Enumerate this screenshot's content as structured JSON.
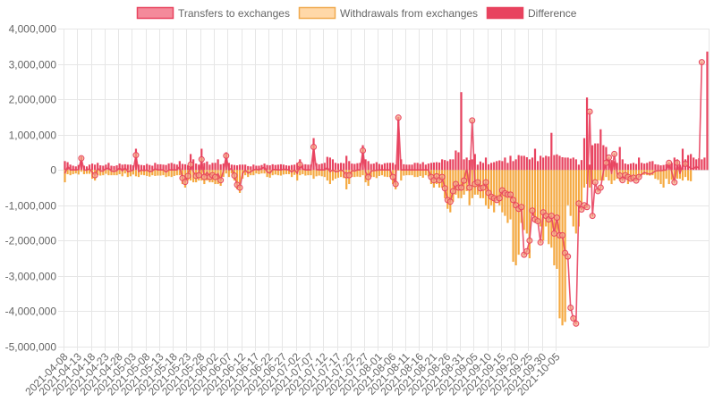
{
  "chart_data": {
    "type": "bar",
    "title": "",
    "xlabel": "",
    "ylabel": "",
    "ylim": [
      -5000000,
      4000000
    ],
    "y_ticks": [
      4000000,
      3000000,
      2000000,
      1000000,
      0,
      -1000000,
      -2000000,
      -3000000,
      -4000000,
      -5000000
    ],
    "y_tick_labels": [
      "4,000,000",
      "3,000,000",
      "2,000,000",
      "1,000,000",
      "0",
      "-1,000,000",
      "-2,000,000",
      "-3,000,000",
      "-4,000,000",
      "-5,000,000"
    ],
    "x_range": [
      "2021-04-08",
      "2021-10-06"
    ],
    "x_tick_labels": [
      "2021-04-08",
      "2021-04-13",
      "2021-04-18",
      "2021-04-23",
      "2021-04-28",
      "2021-05-03",
      "2021-05-08",
      "2021-05-13",
      "2021-05-18",
      "2021-05-23",
      "2021-05-28",
      "2021-06-02",
      "2021-06-07",
      "2021-06-12",
      "2021-06-17",
      "2021-06-22",
      "2021-06-27",
      "2021-07-02",
      "2021-07-07",
      "2021-07-12",
      "2021-07-17",
      "2021-07-22",
      "2021-07-27",
      "2021-08-01",
      "2021-08-06",
      "2021-08-11",
      "2021-08-16",
      "2021-08-21",
      "2021-08-26",
      "2021-08-31",
      "2021-09-05",
      "2021-09-10",
      "2021-09-15",
      "2021-09-20",
      "2021-09-25",
      "2021-09-30",
      "2021-10-05"
    ],
    "grid": true,
    "legend_position": "top",
    "legend": [
      {
        "label": "Transfers to exchanges",
        "fill": "#f48a9a",
        "stroke": "#e8435f"
      },
      {
        "label": "Withdrawals from exchanges",
        "fill": "#ffd8a8",
        "stroke": "#f0a94e"
      },
      {
        "label": "Difference",
        "fill": "#e8435f",
        "stroke": "#e8435f"
      }
    ],
    "colors": {
      "transfers_bar": "#e8435f",
      "withdrawals_bar": "#f5a940",
      "difference_line": "#e8435f",
      "difference_point": "#f4a583",
      "grid": "#e6e6e6",
      "axis_text": "#666666"
    },
    "series": [
      {
        "name": "Transfers to exchanges",
        "role": "bars_positive",
        "values": [
          250000,
          220000,
          150000,
          120000,
          100000,
          140000,
          380000,
          120000,
          100000,
          150000,
          180000,
          150000,
          200000,
          130000,
          120000,
          150000,
          200000,
          120000,
          110000,
          130000,
          180000,
          150000,
          160000,
          150000,
          150000,
          130000,
          600000,
          150000,
          140000,
          130000,
          170000,
          140000,
          120000,
          200000,
          160000,
          160000,
          150000,
          140000,
          180000,
          200000,
          170000,
          150000,
          250000,
          170000,
          160000,
          130000,
          450000,
          300000,
          180000,
          150000,
          600000,
          200000,
          240000,
          150000,
          200000,
          200000,
          300000,
          160000,
          180000,
          500000,
          200000,
          150000,
          140000,
          130000,
          150000,
          150000,
          150000,
          110000,
          100000,
          150000,
          120000,
          120000,
          140000,
          180000,
          140000,
          130000,
          160000,
          140000,
          150000,
          160000,
          150000,
          130000,
          120000,
          140000,
          150000,
          200000,
          300000,
          150000,
          160000,
          150000,
          150000,
          900000,
          190000,
          160000,
          180000,
          200000,
          370000,
          350000,
          300000,
          200000,
          180000,
          200000,
          190000,
          400000,
          250000,
          180000,
          170000,
          190000,
          200000,
          700000,
          300000,
          250000,
          170000,
          180000,
          220000,
          170000,
          150000,
          190000,
          200000,
          200000,
          200000,
          150000,
          1500000,
          300000,
          160000,
          150000,
          150000,
          150000,
          200000,
          200000,
          170000,
          220000,
          150000,
          180000,
          200000,
          210000,
          220000,
          210000,
          300000,
          280000,
          250000,
          300000,
          300000,
          550000,
          500000,
          2200000,
          300000,
          350000,
          280000,
          300000,
          450000,
          150000,
          240000,
          200000,
          350000,
          160000,
          200000,
          220000,
          250000,
          270000,
          250000,
          350000,
          200000,
          400000,
          250000,
          300000,
          420000,
          400000,
          400000,
          360000,
          300000,
          350000,
          600000,
          250000,
          400000,
          350000,
          400000,
          380000,
          1050000,
          420000,
          440000,
          400000,
          360000,
          350000,
          350000,
          320000,
          350000,
          300000,
          150000,
          280000,
          900000,
          2050000,
          150000,
          700000,
          750000,
          750000,
          1150000,
          700000,
          650000,
          300000,
          280000,
          250000,
          200000,
          650000,
          300000,
          180000,
          160000,
          180000,
          200000,
          170000,
          350000,
          200000,
          180000,
          200000,
          240000,
          250000,
          160000,
          150000,
          130000,
          140000,
          160000,
          150000,
          200000,
          350000,
          300000,
          150000,
          600000,
          300000,
          420000,
          450000,
          350000,
          300000,
          330000,
          300000,
          350000,
          3350000
        ]
      },
      {
        "name": "Withdrawals from exchanges",
        "role": "bars_negative",
        "values": [
          -350000,
          -120000,
          -150000,
          -120000,
          -100000,
          -130000,
          -50000,
          -120000,
          -110000,
          -110000,
          -250000,
          -300000,
          -150000,
          -160000,
          -150000,
          -110000,
          -150000,
          -150000,
          -150000,
          -150000,
          -120000,
          -180000,
          -100000,
          -200000,
          -180000,
          -130000,
          -180000,
          -200000,
          -140000,
          -150000,
          -170000,
          -190000,
          -150000,
          -170000,
          -160000,
          -160000,
          -150000,
          -200000,
          -180000,
          -200000,
          -170000,
          -150000,
          -150000,
          -400000,
          -500000,
          -300000,
          -300000,
          -350000,
          -350000,
          -300000,
          -300000,
          -400000,
          -300000,
          -350000,
          -350000,
          -400000,
          -400000,
          -450000,
          -200000,
          -100000,
          -200000,
          -100000,
          -300000,
          -550000,
          -650000,
          -250000,
          -150000,
          -200000,
          -150000,
          -150000,
          -100000,
          -120000,
          -100000,
          -100000,
          -200000,
          -220000,
          -150000,
          -130000,
          -150000,
          -160000,
          -130000,
          -120000,
          -120000,
          -200000,
          -140000,
          -300000,
          -150000,
          -120000,
          -160000,
          -150000,
          -150000,
          -250000,
          -180000,
          -160000,
          -180000,
          -200000,
          -300000,
          -400000,
          -300000,
          -250000,
          -220000,
          -200000,
          -230000,
          -550000,
          -400000,
          -200000,
          -200000,
          -190000,
          -200000,
          -150000,
          -350000,
          -450000,
          -200000,
          -200000,
          -230000,
          -170000,
          -150000,
          -190000,
          -200000,
          -200000,
          -400000,
          -550000,
          -20000,
          -300000,
          -160000,
          -150000,
          -150000,
          -150000,
          -200000,
          -200000,
          -170000,
          -220000,
          -150000,
          -180000,
          -400000,
          -500000,
          -400000,
          -500000,
          -500000,
          -800000,
          -1100000,
          -1200000,
          -900000,
          -700000,
          -800000,
          -800000,
          -700000,
          -600000,
          -1000000,
          -800000,
          -700000,
          -700000,
          -800000,
          -800000,
          -1000000,
          -1100000,
          -1000000,
          -1200000,
          -800000,
          -1000000,
          -1200000,
          -1300000,
          -1500000,
          -1400000,
          -2600000,
          -2700000,
          -2400000,
          -1500000,
          -1700000,
          -1800000,
          -2500000,
          -1300000,
          -1500000,
          -1500000,
          -1600000,
          -2000000,
          -1600000,
          -2100000,
          -2200000,
          -2700000,
          -2800000,
          -4200000,
          -4400000,
          -4300000,
          -1000000,
          -1300000,
          -1600000,
          -1800000,
          -1600000,
          -1000000,
          -500000,
          -400000,
          -500000,
          -400000,
          -300000,
          -300000,
          -300000,
          -300000,
          -200000,
          -300000,
          -400000,
          -300000,
          -250000,
          -300000,
          -250000,
          -250000,
          -400000,
          -300000,
          -280000,
          -250000,
          -200000,
          -150000,
          -140000,
          -150000,
          -160000,
          -150000,
          -250000,
          -280000,
          -400000,
          -500000,
          -250000,
          -400000,
          -280000,
          -280000,
          -250000,
          -250000,
          -300000,
          -200000,
          -300000,
          -320000
        ]
      },
      {
        "name": "Difference",
        "role": "line",
        "values": [
          -100000,
          100000,
          0,
          0,
          0,
          10000,
          330000,
          0,
          -10000,
          40000,
          -70000,
          -150000,
          50000,
          -30000,
          -30000,
          40000,
          50000,
          -30000,
          -40000,
          -20000,
          60000,
          -30000,
          60000,
          -50000,
          -30000,
          0,
          420000,
          -50000,
          0,
          -20000,
          0,
          -50000,
          -30000,
          30000,
          0,
          0,
          0,
          -60000,
          0,
          0,
          0,
          0,
          100000,
          -230000,
          -340000,
          -170000,
          150000,
          -50000,
          -170000,
          -150000,
          300000,
          -200000,
          -60000,
          -200000,
          -150000,
          -200000,
          -100000,
          -290000,
          -20000,
          400000,
          0,
          50000,
          -160000,
          -420000,
          -500000,
          -100000,
          0,
          -90000,
          -50000,
          0,
          20000,
          0,
          40000,
          80000,
          -60000,
          -90000,
          10000,
          10000,
          0,
          0,
          20000,
          10000,
          0,
          -60000,
          10000,
          -100000,
          150000,
          30000,
          0,
          0,
          0,
          650000,
          10000,
          0,
          0,
          0,
          70000,
          -50000,
          0,
          -50000,
          -40000,
          0,
          -40000,
          -150000,
          -150000,
          -20000,
          -30000,
          0,
          0,
          550000,
          -50000,
          -200000,
          -30000,
          -20000,
          -10000,
          0,
          0,
          0,
          0,
          0,
          -200000,
          -400000,
          1480000,
          0,
          0,
          0,
          0,
          0,
          0,
          0,
          0,
          0,
          0,
          0,
          -200000,
          -290000,
          -180000,
          -290000,
          -200000,
          -520000,
          -850000,
          -900000,
          -600000,
          -400000,
          -500000,
          -500000,
          -300000,
          50000,
          -500000,
          1400000,
          -400000,
          -350000,
          -520000,
          -500000,
          -350000,
          -650000,
          -760000,
          -800000,
          -850000,
          -800000,
          -580000,
          -660000,
          -700000,
          -700000,
          -850000,
          -1000000,
          -1100000,
          -1050000,
          -2400000,
          -2300000,
          -2000000,
          -1150000,
          -1400000,
          -1450000,
          -2050000,
          -1200000,
          -1300000,
          -1400000,
          -1300000,
          -1800000,
          -1350000,
          -1850000,
          -1850000,
          -2350000,
          -2450000,
          -3900000,
          -4200000,
          -4350000,
          -950000,
          -1120000,
          -1000000,
          -1050000,
          1650000,
          -1300000,
          -350000,
          -600000,
          -500000,
          -50000,
          200000,
          350000,
          -100000,
          450000,
          -100000,
          -160000,
          -290000,
          -150000,
          -200000,
          -250000,
          -220000,
          -300000,
          -200000,
          -130000,
          -70000,
          -100000,
          -120000,
          -90000,
          -30000,
          -20000,
          -20000,
          -10000,
          0,
          200000,
          -50000,
          -350000,
          200000,
          -100000,
          140000,
          170000,
          100000,
          50000,
          30000,
          100000,
          50000,
          3050000
        ]
      }
    ]
  }
}
